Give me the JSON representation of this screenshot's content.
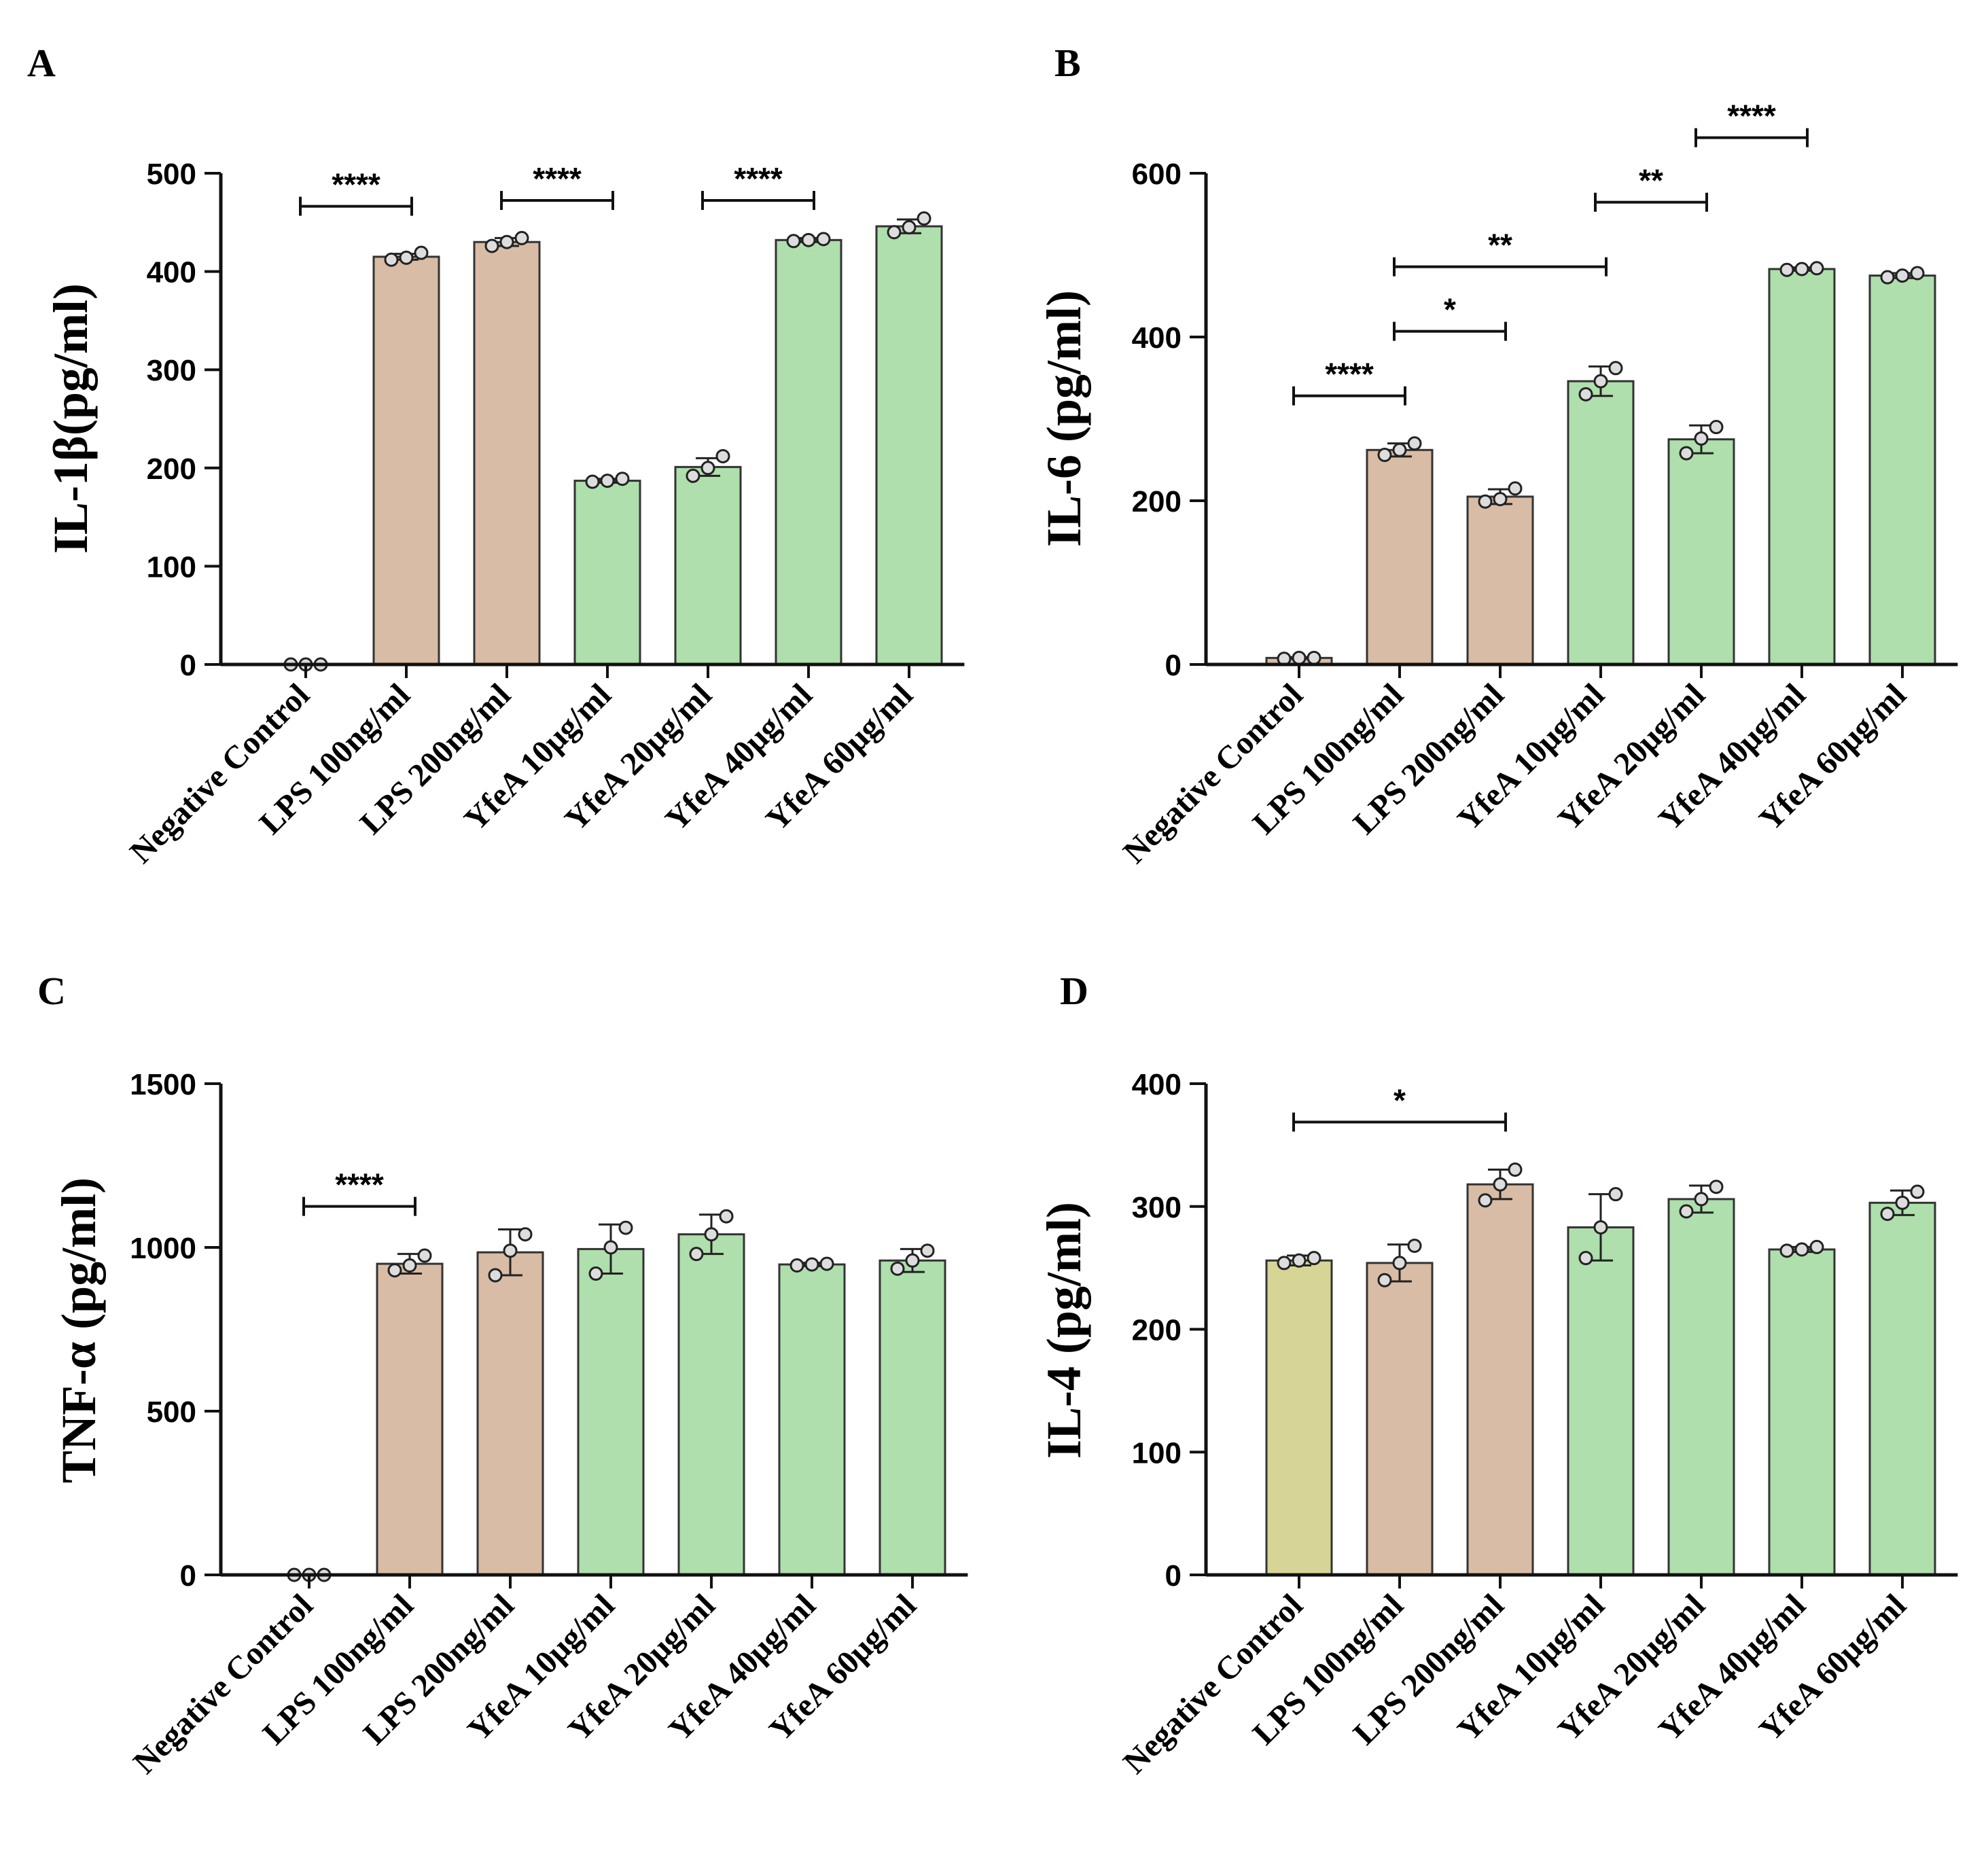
{
  "colors": {
    "negative_control": "#d6d596",
    "lps": "#d9bca5",
    "yfea": "#aedfac",
    "bar_stroke": "#333333",
    "point_fill": "#dddddd"
  },
  "chart_data": [
    {
      "panel": "A",
      "type": "bar",
      "ylabel": "IL-1β(pg/ml)",
      "ylim": [
        0,
        500
      ],
      "yticks": [
        0,
        100,
        200,
        300,
        400,
        500
      ],
      "categories": [
        "Negative Control",
        "LPS 100ng/ml",
        "LPS 200ng/ml",
        "YfeA 10μg/ml",
        "YfeA 20μg/ml",
        "YfeA 40μg/ml",
        "YfeA 60μg/ml"
      ],
      "values": [
        0,
        415,
        430,
        187,
        201,
        432,
        446
      ],
      "sd": [
        0,
        3,
        4,
        2,
        9,
        2,
        7
      ],
      "points": [
        [
          0,
          0,
          0
        ],
        [
          412,
          419,
          414
        ],
        [
          426,
          434,
          430
        ],
        [
          186,
          189,
          187
        ],
        [
          192,
          212,
          200
        ],
        [
          431,
          433,
          432
        ],
        [
          440,
          454,
          445
        ]
      ],
      "significance": [
        {
          "from": 0,
          "to": 1,
          "label": "****"
        },
        {
          "from": 2,
          "to": 3,
          "label": "****"
        },
        {
          "from": 4,
          "to": 5,
          "label": "****"
        }
      ]
    },
    {
      "panel": "B",
      "type": "bar",
      "ylabel": "IL-6 (pg/ml)",
      "ylim": [
        0,
        600
      ],
      "yticks": [
        0,
        200,
        400,
        600
      ],
      "categories": [
        "Negative Control",
        "LPS 100ng/ml",
        "LPS 200ng/ml",
        "YfeA 10μg/ml",
        "YfeA 20μg/ml",
        "YfeA 40μg/ml",
        "YfeA 60μg/ml"
      ],
      "values": [
        8,
        262,
        205,
        346,
        275,
        483,
        475
      ],
      "sd": [
        1,
        8,
        9,
        18,
        17,
        2,
        3
      ],
      "points": [
        [
          7,
          8,
          8
        ],
        [
          256,
          270,
          262
        ],
        [
          199,
          215,
          202
        ],
        [
          330,
          362,
          346
        ],
        [
          258,
          290,
          276
        ],
        [
          482,
          484,
          483
        ],
        [
          473,
          478,
          475
        ]
      ],
      "significance": [
        {
          "from": 0,
          "to": 1,
          "label": "****"
        },
        {
          "from": 1,
          "to": 2,
          "label": "*"
        },
        {
          "from": 1,
          "to": 3,
          "label": "**"
        },
        {
          "from": 3,
          "to": 4,
          "label": "**"
        },
        {
          "from": 4,
          "to": 5,
          "label": "****"
        }
      ]
    },
    {
      "panel": "C",
      "type": "bar",
      "ylabel": "TNF-α (pg/ml)",
      "ylim": [
        0,
        1500
      ],
      "yticks": [
        0,
        500,
        1000,
        1500
      ],
      "categories": [
        "Negative Control",
        "LPS 100ng/ml",
        "LPS 200ng/ml",
        "YfeA 10μg/ml",
        "YfeA 20μg/ml",
        "YfeA 40μg/ml",
        "YfeA 60μg/ml"
      ],
      "values": [
        0,
        950,
        985,
        995,
        1040,
        948,
        960
      ],
      "sd": [
        0,
        30,
        70,
        75,
        60,
        5,
        35
      ],
      "points": [
        [
          0,
          0,
          0
        ],
        [
          930,
          975,
          945
        ],
        [
          915,
          1040,
          990
        ],
        [
          920,
          1060,
          1000
        ],
        [
          980,
          1095,
          1040
        ],
        [
          945,
          950,
          948
        ],
        [
          935,
          990,
          960
        ]
      ],
      "significance": [
        {
          "from": 0,
          "to": 1,
          "label": "****"
        }
      ]
    },
    {
      "panel": "D",
      "type": "bar",
      "ylabel": "IL-4 (pg/ml)",
      "ylim": [
        0,
        400
      ],
      "yticks": [
        0,
        100,
        200,
        300,
        400
      ],
      "categories": [
        "Negative Control",
        "LPS 100ng/ml",
        "LPS 200ng/ml",
        "YfeA 10μg/ml",
        "YfeA 20μg/ml",
        "YfeA 40μg/ml",
        "YfeA 60μg/ml"
      ],
      "values": [
        256,
        254,
        318,
        283,
        306,
        265,
        303
      ],
      "sd": [
        4,
        15,
        12,
        27,
        11,
        2,
        10
      ],
      "points": [
        [
          254,
          258,
          256
        ],
        [
          240,
          268,
          254
        ],
        [
          305,
          330,
          318
        ],
        [
          258,
          310,
          283
        ],
        [
          296,
          316,
          306
        ],
        [
          264,
          267,
          265
        ],
        [
          294,
          312,
          303
        ]
      ],
      "significance": [
        {
          "from": 0,
          "to": 2,
          "label": "*"
        }
      ]
    }
  ]
}
